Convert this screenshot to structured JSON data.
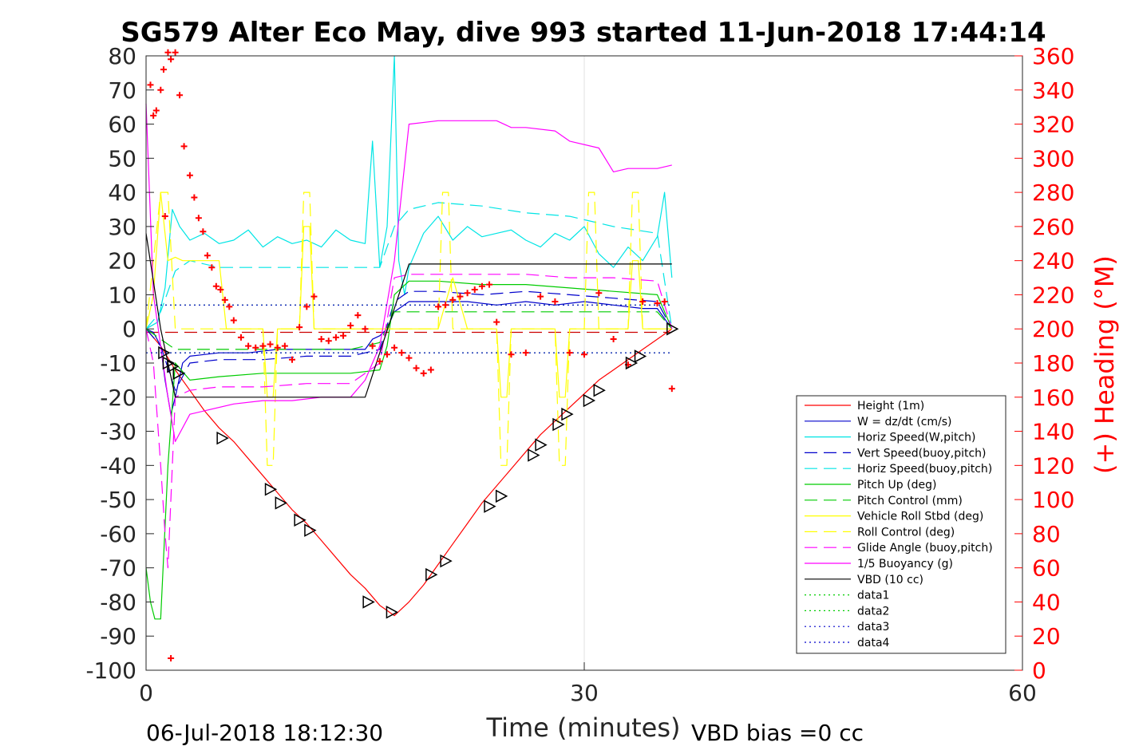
{
  "chart_data": {
    "type": "line",
    "title": "SG579 Alter Eco May, dive 993 started 11-Jun-2018 17:44:14",
    "xlabel": "Time (minutes)",
    "ylabel_right": "(+) Heading (°M)",
    "xlim": [
      0,
      60
    ],
    "ylim": [
      -100,
      80
    ],
    "ylim_right": [
      0,
      360
    ],
    "xticks": [
      "0",
      "30",
      "60"
    ],
    "yticks": [
      "80",
      "70",
      "60",
      "50",
      "40",
      "30",
      "20",
      "10",
      "0",
      "-10",
      "-20",
      "-30",
      "-40",
      "-50",
      "-60",
      "-70",
      "-80",
      "-90",
      "-100"
    ],
    "yticks_right": [
      "360",
      "340",
      "320",
      "300",
      "280",
      "260",
      "240",
      "220",
      "200",
      "180",
      "160",
      "140",
      "120",
      "100",
      "80",
      "60",
      "40",
      "20",
      "0"
    ],
    "grid": "x only",
    "legend_position": "lower-right",
    "footer_left": "06-Jul-2018 18:12:30",
    "footer_right": "VBD bias =0 cc",
    "colors": {
      "red": "#ff0000",
      "blue": "#0000cc",
      "cyan": "#00e5e5",
      "green": "#00cc00",
      "yellow": "#ffff00",
      "magenta": "#ff00ff",
      "black": "#000000"
    },
    "series": [
      {
        "name": "Height (1m)",
        "color": "#ff0000",
        "style": "solid",
        "x": [
          0,
          1,
          2,
          3,
          4,
          5,
          6,
          7,
          8,
          9,
          10,
          11,
          12,
          13,
          14,
          15,
          16,
          17,
          18,
          19,
          20,
          21,
          22,
          23,
          24,
          25,
          26,
          27,
          28,
          29,
          30,
          31,
          32,
          33,
          34,
          35,
          36
        ],
        "y": [
          0,
          -5,
          -12,
          -18,
          -24,
          -29,
          -33,
          -38,
          -43,
          -48,
          -53,
          -57,
          -62,
          -67,
          -72,
          -76,
          -81,
          -84,
          -80,
          -75,
          -69,
          -63,
          -57,
          -51,
          -46,
          -41,
          -36,
          -31,
          -27,
          -23,
          -19,
          -15,
          -12,
          -9,
          -6,
          -3,
          0
        ]
      },
      {
        "name": "W = dz/dt (cm/s)",
        "color": "#0000cc",
        "style": "solid",
        "x": [
          0,
          0.5,
          1,
          1.3,
          1.7,
          2,
          2.5,
          3,
          5,
          7,
          9,
          11,
          13,
          15,
          15.5,
          16,
          16.5,
          17,
          18,
          20,
          22,
          24,
          26,
          28,
          30,
          32,
          34,
          35,
          36
        ],
        "y": [
          0,
          -1,
          -5,
          -15,
          -25,
          -20,
          -10,
          -8,
          -7,
          -7,
          -6,
          -6,
          -6,
          -6,
          -3,
          -2,
          0,
          5,
          8,
          8,
          8,
          7,
          8,
          7,
          8,
          7,
          6,
          6,
          0
        ]
      },
      {
        "name": "Horiz Speed(W,pitch)",
        "color": "#00e5e5",
        "style": "solid",
        "x": [
          0,
          0.8,
          1.3,
          1.8,
          2.3,
          3,
          4,
          5,
          6,
          7,
          8,
          9,
          10,
          11,
          12,
          13,
          14,
          15,
          15.5,
          16,
          16.5,
          17,
          17.3,
          17.7,
          18,
          19,
          20,
          21,
          22,
          23,
          24,
          25,
          26,
          27,
          28,
          29,
          30,
          31,
          32,
          33,
          34,
          35,
          35.5,
          36
        ],
        "y": [
          0,
          2,
          12,
          35,
          30,
          26,
          28,
          25,
          26,
          29,
          24,
          27,
          25,
          26,
          24,
          29,
          26,
          25,
          55,
          18,
          30,
          80,
          20,
          10,
          18,
          28,
          33,
          26,
          30,
          27,
          28,
          29,
          26,
          24,
          28,
          26,
          30,
          22,
          18,
          24,
          20,
          27,
          40,
          15
        ]
      },
      {
        "name": "Vert Speed(buoy,pitch)",
        "color": "#0000cc",
        "style": "dashed",
        "x": [
          0,
          1,
          2,
          3,
          5,
          8,
          11,
          14,
          16,
          17,
          18,
          20,
          23,
          26,
          29,
          32,
          35,
          36
        ],
        "y": [
          0,
          -5,
          -18,
          -10,
          -9,
          -9,
          -8,
          -8,
          -6,
          8,
          11,
          11,
          10,
          11,
          10,
          9,
          8,
          0
        ]
      },
      {
        "name": "Horiz Speed(buoy,pitch)",
        "color": "#00e5e5",
        "style": "dashed",
        "x": [
          0,
          1,
          2,
          3,
          5,
          8,
          11,
          14,
          16,
          17,
          18,
          20,
          23,
          26,
          29,
          32,
          35,
          36
        ],
        "y": [
          0,
          5,
          17,
          20,
          18,
          18,
          18,
          18,
          18,
          30,
          35,
          37,
          36,
          34,
          33,
          30,
          28,
          0
        ]
      },
      {
        "name": "Pitch Up (deg)",
        "color": "#00cc00",
        "style": "solid",
        "x": [
          0,
          0.3,
          0.6,
          1,
          1.5,
          2,
          3,
          5,
          8,
          11,
          14,
          16,
          16.5,
          17,
          18,
          20,
          23,
          26,
          29,
          32,
          35,
          36
        ],
        "y": [
          -70,
          -80,
          -85,
          -85,
          -40,
          -10,
          -15,
          -14,
          -13,
          -13,
          -13,
          -12,
          -5,
          10,
          14,
          14,
          13,
          13,
          12,
          11,
          10,
          0
        ]
      },
      {
        "name": "Pitch Control (mm)",
        "color": "#00cc00",
        "style": "dashed",
        "x": [
          0,
          1,
          2,
          3,
          5,
          8,
          11,
          14,
          16,
          17,
          18,
          20,
          23,
          26,
          29,
          32,
          35,
          36
        ],
        "y": [
          0,
          -3,
          -6,
          -6,
          -6,
          -6,
          -6,
          -6,
          -4,
          5,
          5,
          5,
          5,
          5,
          5,
          5,
          5,
          0
        ]
      },
      {
        "name": "Vehicle Roll Stbd (deg)",
        "color": "#ffff00",
        "style": "solid",
        "x": [
          0,
          0.5,
          1,
          1.5,
          2,
          2.5,
          5,
          5.5,
          8,
          8.3,
          8.7,
          9,
          10.5,
          10.8,
          11.2,
          11.5,
          16,
          20,
          21,
          22,
          24,
          24.3,
          24.7,
          25,
          28,
          28.3,
          28.7,
          29,
          33,
          33.3,
          33.7,
          34,
          36
        ],
        "y": [
          0,
          10,
          40,
          20,
          21,
          20,
          20,
          0,
          0,
          -20,
          -20,
          0,
          0,
          30,
          30,
          0,
          0,
          0,
          15,
          0,
          0,
          -20,
          -20,
          0,
          0,
          -20,
          -20,
          0,
          0,
          20,
          20,
          0,
          0
        ]
      },
      {
        "name": "Roll Control (deg)",
        "color": "#ffff00",
        "style": "dashed",
        "x": [
          0,
          1,
          1.5,
          2,
          5,
          5.5,
          8,
          8.3,
          8.7,
          9,
          10.5,
          10.8,
          11.2,
          11.5,
          20,
          20.3,
          20.7,
          21,
          24,
          24.3,
          24.7,
          25,
          28,
          28.3,
          28.7,
          29,
          30,
          30.3,
          30.7,
          31,
          33,
          33.3,
          33.7,
          34,
          36
        ],
        "y": [
          0,
          40,
          40,
          0,
          0,
          0,
          0,
          -40,
          -40,
          0,
          0,
          40,
          40,
          0,
          0,
          40,
          40,
          0,
          0,
          -40,
          -40,
          0,
          0,
          -40,
          -40,
          0,
          0,
          40,
          40,
          0,
          0,
          40,
          40,
          0,
          0
        ]
      },
      {
        "name": "Glide Angle (buoy,pitch)",
        "color": "#ff00ff",
        "style": "dashed",
        "x": [
          0,
          0.5,
          1,
          1.3,
          1.5,
          2,
          3,
          5,
          8,
          11,
          14,
          16,
          17,
          18,
          20,
          23,
          26,
          29,
          32,
          35,
          36
        ],
        "y": [
          0,
          -10,
          -40,
          -60,
          -70,
          -20,
          -18,
          -17,
          -17,
          -16,
          -16,
          -10,
          15,
          16,
          16,
          16,
          16,
          15,
          15,
          14,
          0
        ]
      },
      {
        "name": "1/5 Buoyancy (g)",
        "color": "#ff00ff",
        "style": "solid",
        "x": [
          0,
          0.5,
          1,
          1.5,
          2,
          3,
          6,
          8,
          10,
          12,
          14,
          15,
          16,
          17,
          18,
          20,
          24,
          25,
          26,
          28,
          29,
          31,
          32,
          33,
          35,
          36
        ],
        "y": [
          66,
          10,
          -5,
          -20,
          -33,
          -25,
          -22,
          -21,
          -21,
          -20,
          -20,
          -15,
          -5,
          20,
          60,
          61,
          61,
          59,
          59,
          58,
          55,
          53,
          46,
          47,
          47,
          48
        ]
      },
      {
        "name": "VBD (10 cc)",
        "color": "#000000",
        "style": "solid",
        "x": [
          0,
          1,
          2,
          15,
          18,
          36
        ],
        "y": [
          28,
          0,
          -20,
          -20,
          19,
          19
        ]
      },
      {
        "name": "data1",
        "color": "#00cc00",
        "style": "dotted",
        "x": [
          0,
          36
        ],
        "y": [
          7,
          7
        ]
      },
      {
        "name": "data2",
        "color": "#00cc00",
        "style": "dotted",
        "x": [
          0,
          36
        ],
        "y": [
          -7,
          -7
        ]
      },
      {
        "name": "data3",
        "color": "#0000cc",
        "style": "dotted",
        "x": [
          0,
          36
        ],
        "y": [
          7,
          7
        ]
      },
      {
        "name": "data4",
        "color": "#0000cc",
        "style": "dotted",
        "x": [
          0,
          36
        ],
        "y": [
          -7,
          -7
        ]
      }
    ],
    "reference_lines": [
      {
        "color": "#cc0000",
        "style": "dashed",
        "x": [
          0,
          36
        ],
        "y": [
          -1,
          -1
        ]
      }
    ],
    "heading_points": {
      "color": "#ff0000",
      "marker": "+",
      "x": [
        0.3,
        0.5,
        0.7,
        1.0,
        1.2,
        1.5,
        1.7,
        2.0,
        2.3,
        2.6,
        3.0,
        3.3,
        3.6,
        3.9,
        4.2,
        4.5,
        4.8,
        5.1,
        5.4,
        5.7,
        6.0,
        6.5,
        7.0,
        7.5,
        8.0,
        8.5,
        9.0,
        9.5,
        10.0,
        10.5,
        11.0,
        11.5,
        12.0,
        12.5,
        13.0,
        13.5,
        14.0,
        14.5,
        15.0,
        15.5,
        16.0,
        16.5,
        17.0,
        17.5,
        18.0,
        18.5,
        19.0,
        19.5,
        20.0,
        20.5,
        21.0,
        21.5,
        22.0,
        22.5,
        23.0,
        23.5,
        24.0,
        25.0,
        26.0,
        27.0,
        28.0,
        29.0,
        30.0,
        31.0,
        32.0,
        33.0,
        34.0,
        35.0,
        35.5,
        36.0,
        1.3,
        1.7
      ],
      "y": [
        343,
        325,
        328,
        340,
        352,
        362,
        358,
        362,
        337,
        307,
        290,
        277,
        265,
        257,
        243,
        236,
        225,
        223,
        217,
        213,
        205,
        195,
        190,
        189,
        190,
        191,
        189,
        190,
        182,
        201,
        213,
        219,
        194,
        193,
        195,
        196,
        202,
        208,
        200,
        190,
        181,
        185,
        189,
        186,
        183,
        177,
        174,
        176,
        213,
        214,
        217,
        219,
        221,
        223,
        225,
        226,
        204,
        185,
        186,
        219,
        216,
        186,
        185,
        221,
        194,
        179,
        216,
        215,
        216,
        165,
        266,
        7
      ]
    },
    "markers": {
      "color": "#000000",
      "marker": "triangle",
      "x": [
        1.2,
        1.5,
        1.8,
        2.2,
        5.2,
        8.5,
        9.2,
        10.5,
        11.2,
        15.2,
        16.8,
        19.5,
        20.5,
        23.5,
        24.3,
        26.5,
        27.0,
        28.2,
        28.8,
        30.3,
        31.0,
        33.2,
        33.8,
        36.0
      ],
      "y": [
        -7,
        -10,
        -11,
        -13,
        -32,
        -47,
        -51,
        -56,
        -59,
        -80,
        -83,
        -72,
        -68,
        -52,
        -49,
        -37,
        -34,
        -28,
        -25,
        -21,
        -18,
        -10,
        -8,
        0
      ]
    }
  }
}
